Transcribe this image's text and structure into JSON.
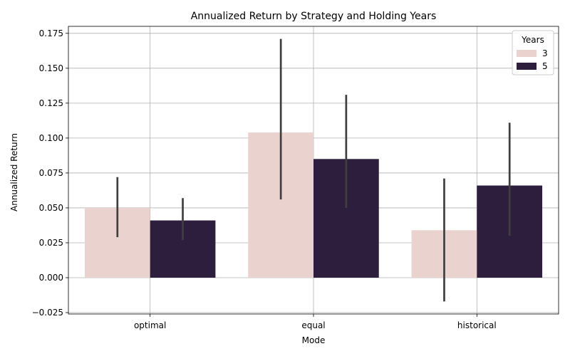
{
  "chart_data": {
    "type": "bar",
    "title": "Annualized Return by Strategy and Holding Years",
    "xlabel": "Mode",
    "ylabel": "Annualized Return",
    "categories": [
      "optimal",
      "equal",
      "historical"
    ],
    "ylim": [
      -0.026,
      0.18
    ],
    "yticks": [
      -0.025,
      0.0,
      0.025,
      0.05,
      0.075,
      0.1,
      0.125,
      0.15,
      0.175
    ],
    "ytick_labels": [
      "−0.025",
      "0.000",
      "0.025",
      "0.050",
      "0.075",
      "0.100",
      "0.125",
      "0.150",
      "0.175"
    ],
    "grid": true,
    "legend": {
      "title": "Years",
      "placement": "top-right"
    },
    "series": [
      {
        "name": "3",
        "color": "#ead3cf",
        "values": [
          0.05,
          0.104,
          0.034
        ],
        "ci_low": [
          0.029,
          0.056,
          -0.017
        ],
        "ci_high": [
          0.072,
          0.171,
          0.071
        ]
      },
      {
        "name": "5",
        "color": "#2d1e3e",
        "values": [
          0.041,
          0.085,
          0.066
        ],
        "ci_low": [
          0.027,
          0.05,
          0.03
        ],
        "ci_high": [
          0.057,
          0.131,
          0.111
        ]
      }
    ],
    "errorbar_color": "#3f3f3f"
  }
}
